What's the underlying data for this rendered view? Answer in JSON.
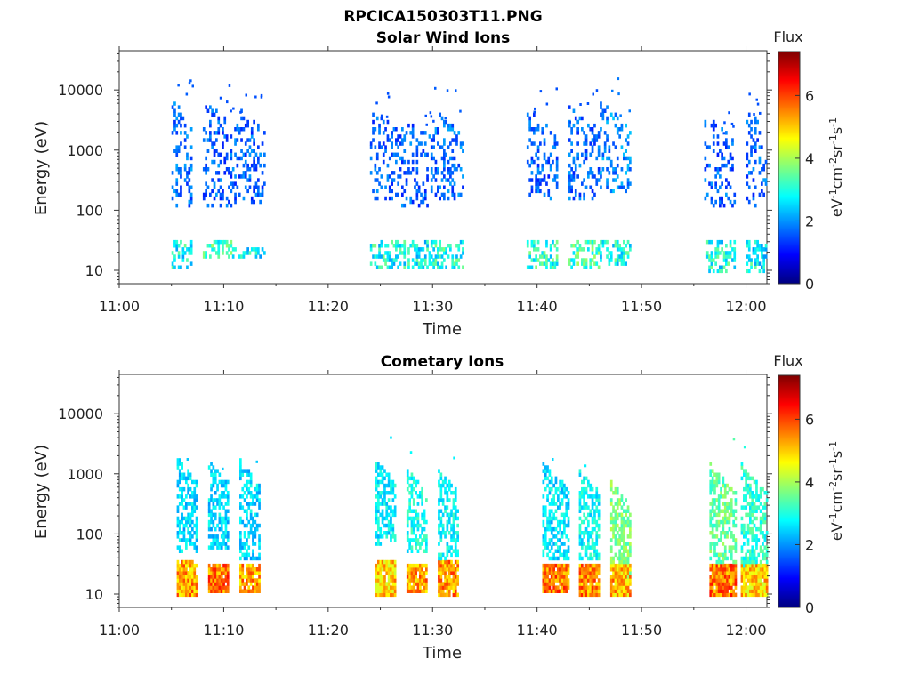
{
  "figure": {
    "title": "RPCICA150303T11.PNG"
  },
  "chart_data": [
    {
      "type": "heatmap",
      "title": "Solar Wind Ions",
      "xlabel": "Time",
      "ylabel": "Energy (eV)",
      "x_ticks": [
        "11:00",
        "11:10",
        "11:20",
        "11:30",
        "11:40",
        "11:50",
        "12:00"
      ],
      "xlim": [
        "11:00",
        "12:02"
      ],
      "y_ticks": [
        10,
        100,
        1000,
        10000
      ],
      "ylim": [
        6,
        45000
      ],
      "y_scale": "log",
      "colorbar": {
        "title": "Flux",
        "label": "eV-1cm-2sr-1s-1",
        "ticks": [
          0,
          2,
          4,
          6
        ],
        "range": [
          0,
          7.4
        ],
        "colormap": "jet"
      },
      "bursts": [
        {
          "start": "11:05",
          "end": "11:07",
          "high_e": [
            150,
            4000
          ],
          "high_flux": 1.6,
          "low_e": [
            10,
            28
          ],
          "low_flux": 2.9
        },
        {
          "start": "11:08",
          "end": "11:11",
          "high_e": [
            150,
            4000
          ],
          "high_flux": 1.5,
          "low_e": [
            15,
            28
          ],
          "low_flux": 3.2
        },
        {
          "start": "11:11",
          "end": "11:14",
          "high_e": [
            180,
            3000
          ],
          "high_flux": 1.5,
          "low_e": [
            15,
            22
          ],
          "low_flux": 2.8
        },
        {
          "start": "11:24",
          "end": "11:27",
          "high_e": [
            200,
            2500
          ],
          "high_flux": 1.5,
          "low_e": [
            10,
            28
          ],
          "low_flux": 2.9
        },
        {
          "start": "11:27",
          "end": "11:30",
          "high_e": [
            150,
            2000
          ],
          "high_flux": 1.5,
          "low_e": [
            10,
            28
          ],
          "low_flux": 2.8
        },
        {
          "start": "11:30",
          "end": "11:33",
          "high_e": [
            200,
            2500
          ],
          "high_flux": 1.6,
          "low_e": [
            10,
            28
          ],
          "low_flux": 3.0
        },
        {
          "start": "11:39",
          "end": "11:42",
          "high_e": [
            200,
            2500
          ],
          "high_flux": 1.5,
          "low_e": [
            10,
            28
          ],
          "low_flux": 3.0
        },
        {
          "start": "11:43",
          "end": "11:46",
          "high_e": [
            200,
            3000
          ],
          "high_flux": 1.5,
          "low_e": [
            10,
            28
          ],
          "low_flux": 3.3
        },
        {
          "start": "11:46",
          "end": "11:49",
          "high_e": [
            250,
            3500
          ],
          "high_flux": 1.8,
          "low_e": [
            12,
            28
          ],
          "low_flux": 2.9
        },
        {
          "start": "11:56",
          "end": "11:59",
          "high_e": [
            150,
            2000
          ],
          "high_flux": 1.5,
          "low_e": [
            8,
            28
          ],
          "low_flux": 2.9
        },
        {
          "start": "12:00",
          "end": "12:02",
          "high_e": [
            150,
            3000
          ],
          "high_flux": 1.5,
          "low_e": [
            8,
            28
          ],
          "low_flux": 2.8
        }
      ]
    },
    {
      "type": "heatmap",
      "title": "Cometary Ions",
      "xlabel": "Time",
      "ylabel": "Energy (eV)",
      "x_ticks": [
        "11:00",
        "11:10",
        "11:20",
        "11:30",
        "11:40",
        "11:50",
        "12:00"
      ],
      "xlim": [
        "11:00",
        "12:02"
      ],
      "y_ticks": [
        10,
        100,
        1000,
        10000
      ],
      "ylim": [
        6,
        45000
      ],
      "y_scale": "log",
      "colorbar": {
        "title": "Flux",
        "label": "eV-1cm-2sr-1s-1",
        "ticks": [
          0,
          2,
          4,
          6
        ],
        "range": [
          0,
          7.4
        ],
        "colormap": "jet"
      },
      "bursts": [
        {
          "start": "11:05.5",
          "end": "11:07.5",
          "high_e": [
            60,
            1000
          ],
          "high_flux": 2.4,
          "low_e": [
            8,
            32
          ],
          "low_flux": 5.3
        },
        {
          "start": "11:08.5",
          "end": "11:10.5",
          "high_e": [
            70,
            900
          ],
          "high_flux": 2.4,
          "low_e": [
            10,
            30
          ],
          "low_flux": 5.6
        },
        {
          "start": "11:11.5",
          "end": "11:13.5",
          "high_e": [
            50,
            900
          ],
          "high_flux": 2.4,
          "low_e": [
            10,
            30
          ],
          "low_flux": 5.3
        },
        {
          "start": "11:24.5",
          "end": "11:26.5",
          "high_e": [
            80,
            900
          ],
          "high_flux": 2.6,
          "low_e": [
            8,
            32
          ],
          "low_flux": 5.0
        },
        {
          "start": "11:27.5",
          "end": "11:29.5",
          "high_e": [
            60,
            600
          ],
          "high_flux": 2.8,
          "low_e": [
            10,
            30
          ],
          "low_flux": 5.3
        },
        {
          "start": "11:30.5",
          "end": "11:32.5",
          "high_e": [
            40,
            700
          ],
          "high_flux": 2.7,
          "low_e": [
            8,
            32
          ],
          "low_flux": 5.4
        },
        {
          "start": "11:40.5",
          "end": "11:43",
          "high_e": [
            50,
            800
          ],
          "high_flux": 2.5,
          "low_e": [
            10,
            30
          ],
          "low_flux": 5.6
        },
        {
          "start": "11:44",
          "end": "11:46",
          "high_e": [
            50,
            600
          ],
          "high_flux": 2.7,
          "low_e": [
            8,
            30
          ],
          "low_flux": 5.5
        },
        {
          "start": "11:47",
          "end": "11:49",
          "high_e": [
            25,
            400
          ],
          "high_flux": 3.6,
          "low_e": [
            8,
            30
          ],
          "low_flux": 5.2
        },
        {
          "start": "11:56.5",
          "end": "11:59",
          "high_e": [
            25,
            800
          ],
          "high_flux": 3.4,
          "low_e": [
            8,
            30
          ],
          "low_flux": 5.6
        },
        {
          "start": "11:59.5",
          "end": "12:02",
          "high_e": [
            25,
            800
          ],
          "high_flux": 3.0,
          "low_e": [
            8,
            30
          ],
          "low_flux": 5.0
        }
      ]
    }
  ]
}
